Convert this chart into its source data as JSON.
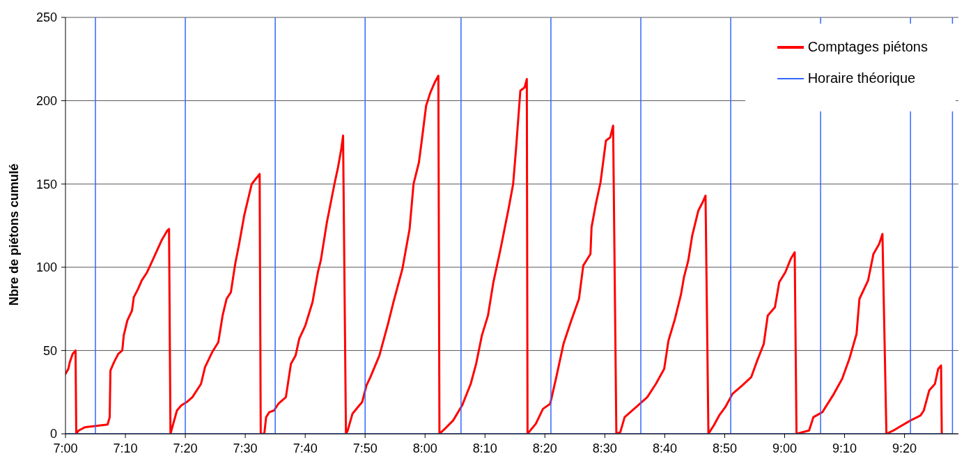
{
  "chart_data": {
    "type": "line",
    "ylabel": "Nbre de piétons cumulé",
    "xlim": [
      7,
      9.4833
    ],
    "ylim": [
      0,
      250
    ],
    "xticks": [
      {
        "value": 7,
        "label": "7:00"
      },
      {
        "value": 7.1667,
        "label": "7:10"
      },
      {
        "value": 7.3333,
        "label": "7:20"
      },
      {
        "value": 7.5,
        "label": "7:30"
      },
      {
        "value": 7.6667,
        "label": "7:40"
      },
      {
        "value": 7.8333,
        "label": "7:50"
      },
      {
        "value": 8,
        "label": "8:00"
      },
      {
        "value": 8.1667,
        "label": "8:10"
      },
      {
        "value": 8.3333,
        "label": "8:20"
      },
      {
        "value": 8.5,
        "label": "8:30"
      },
      {
        "value": 8.6667,
        "label": "8:40"
      },
      {
        "value": 8.8333,
        "label": "8:50"
      },
      {
        "value": 9,
        "label": "9:00"
      },
      {
        "value": 9.1667,
        "label": "9:10"
      },
      {
        "value": 9.3333,
        "label": "9:20"
      }
    ],
    "yticks": [
      0,
      50,
      100,
      150,
      200,
      250
    ],
    "grid": "y",
    "legend": "top right",
    "marker": "none",
    "line_style": "solid",
    "series": [
      {
        "name": "Comptages piétons",
        "color": "#ff0000",
        "x": [
          7.0,
          7.008,
          7.012,
          7.02,
          7.028,
          7.03,
          7.037,
          7.055,
          7.117,
          7.123,
          7.125,
          7.135,
          7.147,
          7.158,
          7.162,
          7.172,
          7.185,
          7.19,
          7.202,
          7.212,
          7.227,
          7.242,
          7.267,
          7.283,
          7.288,
          7.292,
          7.31,
          7.322,
          7.337,
          7.353,
          7.377,
          7.388,
          7.408,
          7.425,
          7.437,
          7.448,
          7.46,
          7.472,
          7.483,
          7.497,
          7.508,
          7.518,
          7.54,
          7.543,
          7.553,
          7.558,
          7.567,
          7.58,
          7.592,
          7.613,
          7.627,
          7.64,
          7.65,
          7.667,
          7.687,
          7.702,
          7.71,
          7.727,
          7.738,
          7.748,
          7.758,
          7.767,
          7.772,
          7.78,
          7.785,
          7.798,
          7.813,
          7.825,
          7.837,
          7.848,
          7.873,
          7.897,
          7.912,
          7.937,
          7.957,
          7.968,
          7.983,
          7.992,
          8.003,
          8.015,
          8.027,
          8.037,
          8.04,
          8.055,
          8.078,
          8.103,
          8.127,
          8.142,
          8.158,
          8.175,
          8.19,
          8.21,
          8.222,
          8.233,
          8.245,
          8.253,
          8.265,
          8.277,
          8.283,
          8.285,
          8.308,
          8.328,
          8.348,
          8.365,
          8.385,
          8.405,
          8.428,
          8.44,
          8.46,
          8.463,
          8.475,
          8.488,
          8.503,
          8.515,
          8.523,
          8.532,
          8.543,
          8.555,
          8.587,
          8.618,
          8.642,
          8.665,
          8.677,
          8.695,
          8.712,
          8.72,
          8.732,
          8.743,
          8.76,
          8.772,
          8.78,
          8.788,
          8.803,
          8.818,
          8.835,
          8.855,
          8.882,
          8.907,
          8.922,
          8.942,
          8.953,
          8.973,
          8.985,
          9.002,
          9.017,
          9.028,
          9.033,
          9.068,
          9.08,
          9.105,
          9.137,
          9.16,
          9.18,
          9.2,
          9.208,
          9.232,
          9.247,
          9.263,
          9.272,
          9.283,
          9.303,
          9.318,
          9.35,
          9.378,
          9.387,
          9.402,
          9.418,
          9.427,
          9.435,
          9.437
        ],
        "values": [
          36,
          39,
          43,
          48,
          50,
          0,
          2,
          4,
          5.5,
          10,
          38,
          43,
          48,
          50,
          59,
          68,
          74,
          82,
          87,
          92,
          97,
          104,
          116,
          122,
          123,
          0,
          14,
          17,
          19,
          22,
          30,
          40,
          49,
          55,
          71,
          81,
          85,
          102,
          114,
          131,
          141,
          150,
          156,
          0,
          0,
          10,
          13,
          14,
          18,
          22,
          42,
          47,
          57,
          65,
          79,
          97,
          104,
          127,
          139,
          150,
          160,
          171,
          179,
          0,
          2,
          12,
          16,
          19,
          29,
          34,
          47,
          66,
          79,
          99,
          123,
          150,
          163,
          178,
          197,
          205,
          211,
          215,
          0,
          3,
          8,
          17,
          30,
          42,
          59,
          71,
          91,
          111,
          124,
          136,
          150,
          171,
          206,
          208,
          213,
          0,
          6,
          15,
          18,
          34,
          54,
          67,
          81,
          101,
          108,
          124,
          138,
          151,
          176,
          178,
          185,
          0,
          1,
          10,
          16,
          22,
          30,
          39,
          56,
          69,
          84,
          94,
          104,
          119,
          134,
          139,
          143,
          0,
          5,
          11,
          16,
          24,
          29,
          34,
          43,
          54,
          71,
          76,
          91,
          97,
          105,
          109,
          0,
          2,
          10,
          13,
          24,
          33,
          45,
          60,
          81,
          92,
          108,
          114,
          120,
          0,
          2,
          4,
          8,
          11,
          14,
          26,
          30,
          39,
          41,
          0
        ]
      },
      {
        "name": "Horaire théorique",
        "color": "#3366ff",
        "x": [
          7,
          7.0833,
          7.0833,
          7.0833,
          7.3333,
          7.3333,
          7.3333,
          7.5833,
          7.5833,
          7.5833,
          7.8333,
          7.8333,
          7.8333,
          8.1,
          8.1,
          8.1,
          8.35,
          8.35,
          8.35,
          8.6,
          8.6,
          8.6,
          8.85,
          8.85,
          8.85,
          9.1,
          9.1,
          9.1,
          9.35,
          9.35,
          9.35,
          9.4667,
          9.4667
        ],
        "values": [
          0,
          0,
          250,
          0,
          0,
          250,
          0,
          0,
          250,
          0,
          0,
          250,
          0,
          0,
          250,
          0,
          0,
          250,
          0,
          0,
          250,
          0,
          0,
          250,
          0,
          0,
          250,
          0,
          0,
          250,
          0,
          0,
          250
        ]
      }
    ]
  }
}
